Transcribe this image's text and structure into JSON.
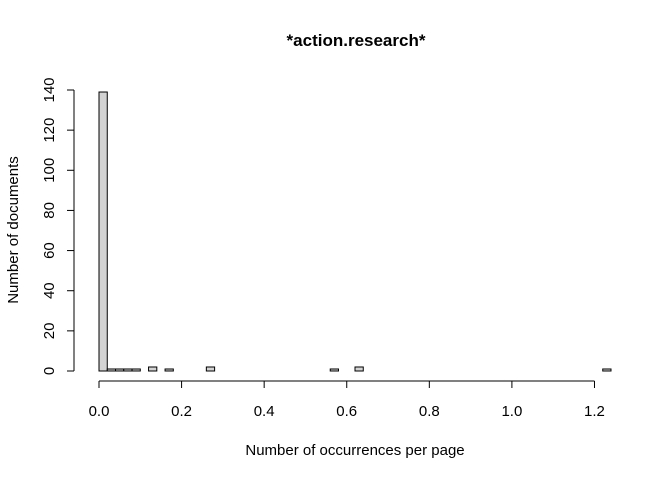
{
  "chart_data": {
    "type": "bar",
    "title": "*action.research*",
    "xlabel": "Number of occurrences per page",
    "ylabel": "Number of documents",
    "xlim": [
      0,
      1.24
    ],
    "ylim": [
      0,
      140
    ],
    "bin_width": 0.02,
    "x_ticks": [
      0,
      0.2,
      0.4,
      0.6,
      0.8,
      1.0,
      1.2
    ],
    "x_tick_labels": [
      "0.0",
      "0.2",
      "0.4",
      "0.6",
      "0.8",
      "1.0",
      "1.2"
    ],
    "y_ticks": [
      0,
      20,
      40,
      60,
      80,
      100,
      120,
      140
    ],
    "y_tick_labels": [
      "0",
      "20",
      "40",
      "60",
      "80",
      "100",
      "120",
      "140"
    ],
    "bin_starts": [
      0.0,
      0.02,
      0.04,
      0.06,
      0.08,
      0.1,
      0.12,
      0.14,
      0.16,
      0.18,
      0.2,
      0.22,
      0.24,
      0.26,
      0.28,
      0.3,
      0.32,
      0.34,
      0.36,
      0.38,
      0.4,
      0.42,
      0.44,
      0.46,
      0.48,
      0.5,
      0.52,
      0.54,
      0.56,
      0.58,
      0.6,
      0.62,
      0.64,
      0.66,
      0.68,
      0.7,
      0.72,
      0.74,
      0.76,
      0.78,
      0.8,
      0.82,
      0.84,
      0.86,
      0.88,
      0.9,
      0.92,
      0.94,
      0.96,
      0.98,
      1.0,
      1.02,
      1.04,
      1.06,
      1.08,
      1.1,
      1.12,
      1.14,
      1.16,
      1.18,
      1.2,
      1.22
    ],
    "values": [
      139,
      1,
      1,
      1,
      1,
      0,
      2,
      0,
      1,
      0,
      0,
      0,
      0,
      2,
      0,
      0,
      0,
      0,
      0,
      0,
      0,
      0,
      0,
      0,
      0,
      0,
      0,
      0,
      1,
      0,
      0,
      2,
      0,
      0,
      0,
      0,
      0,
      0,
      0,
      0,
      0,
      0,
      0,
      0,
      0,
      0,
      0,
      0,
      0,
      0,
      0,
      0,
      0,
      0,
      0,
      0,
      0,
      0,
      0,
      0,
      0,
      1
    ],
    "grid": false,
    "legend": "none"
  }
}
